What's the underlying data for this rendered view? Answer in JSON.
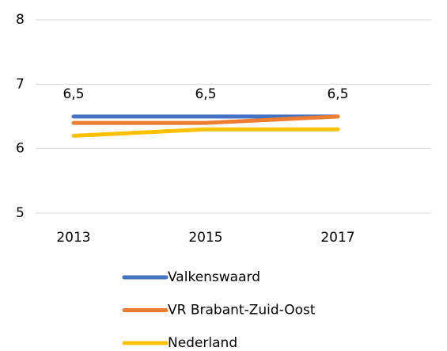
{
  "chart_data": {
    "type": "line",
    "categories": [
      "2013",
      "2015",
      "2017"
    ],
    "series": [
      {
        "name": "Valkenswaard",
        "color": "#4472c4",
        "values": [
          6.5,
          6.5,
          6.5
        ],
        "value_labels": [
          "6,5",
          "6,5",
          "6,5"
        ]
      },
      {
        "name": "VR Brabant-Zuid-Oost",
        "color": "#ed7d31",
        "values": [
          6.4,
          6.4,
          6.5
        ]
      },
      {
        "name": "Nederland",
        "color": "#ffc000",
        "values": [
          6.2,
          6.3,
          6.3
        ]
      }
    ],
    "ylim": [
      5,
      8
    ],
    "yticks": [
      5,
      6,
      7,
      8
    ],
    "grid": true,
    "legend": "bottom"
  }
}
